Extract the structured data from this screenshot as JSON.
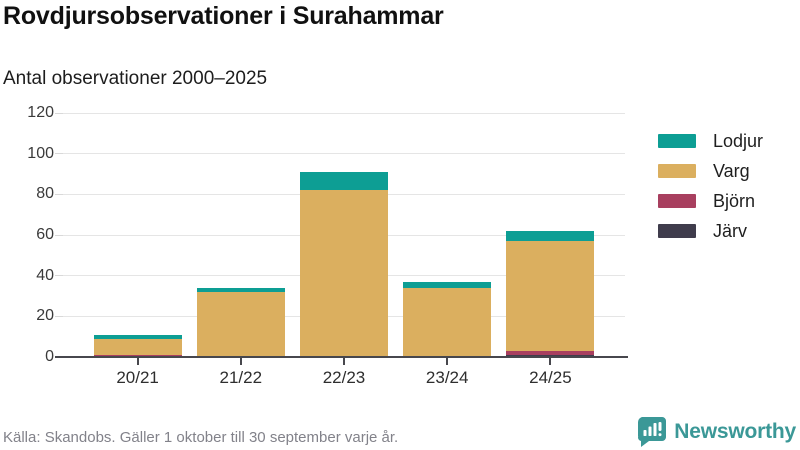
{
  "title": "Rovdjursobservationer i Surahammar",
  "subtitle": "Antal observationer 2000–2025",
  "footer": {
    "source": "Källa: Skandobs. Gäller 1 oktober till 30 september varje år."
  },
  "logo": {
    "text": "Newsworthy",
    "icon": "newsworthy-bar-chart-bubble-icon",
    "color": "#3b9897"
  },
  "colors": {
    "lodjur": "#0d9e94",
    "varg": "#dbaf5f",
    "bjorn": "#a83f5f",
    "jarv": "#3f3c4c",
    "axis": "#47474d",
    "grid": "#e5e5e5",
    "title_text": "#111111",
    "footer_text": "#82828a"
  },
  "chart_data": {
    "type": "bar",
    "stacked": true,
    "title": "Rovdjursobservationer i Surahammar",
    "subtitle": "Antal observationer 2000–2025",
    "categories": [
      "20/21",
      "21/22",
      "22/23",
      "23/24",
      "24/25"
    ],
    "series": [
      {
        "name": "Lodjur",
        "color": "#0d9e94",
        "values": [
          2,
          2,
          9,
          3,
          5
        ]
      },
      {
        "name": "Varg",
        "color": "#dbaf5f",
        "values": [
          8,
          32,
          82,
          34,
          54
        ]
      },
      {
        "name": "Björn",
        "color": "#a83f5f",
        "values": [
          1,
          0,
          0,
          0,
          2
        ]
      },
      {
        "name": "Järv",
        "color": "#3f3c4c",
        "values": [
          0,
          0,
          0,
          0,
          1
        ]
      }
    ],
    "totals": [
      11,
      34,
      91,
      37,
      62
    ],
    "xlabel": "",
    "ylabel": "",
    "ylim": [
      0,
      120
    ],
    "yticks": [
      0,
      20,
      40,
      60,
      80,
      100,
      120
    ],
    "grid": true,
    "legend_position": "right"
  }
}
